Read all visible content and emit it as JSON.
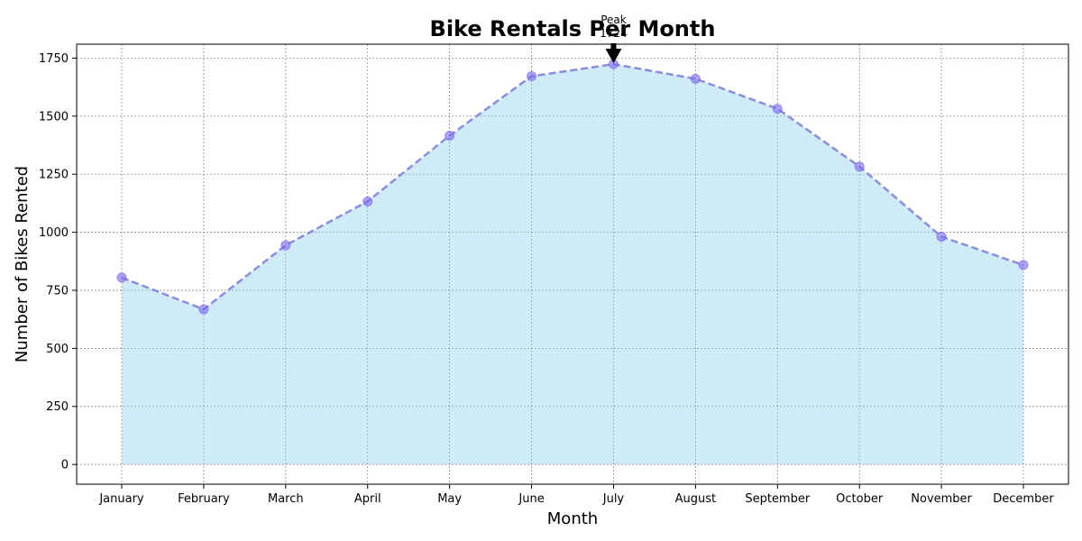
{
  "chart_data": {
    "type": "area",
    "title": "Bike Rentals Per Month",
    "xlabel": "Month",
    "ylabel": "Number of Bikes Rented",
    "categories": [
      "January",
      "February",
      "March",
      "April",
      "May",
      "June",
      "July",
      "August",
      "September",
      "October",
      "November",
      "December"
    ],
    "values": [
      805,
      668,
      944,
      1133,
      1416,
      1672,
      1724,
      1661,
      1532,
      1283,
      981,
      859
    ],
    "ylim": [
      -85,
      1810
    ],
    "yticks": [
      "0",
      "250",
      "500",
      "750",
      "1000",
      "1250",
      "1500",
      "1750"
    ],
    "grid": true,
    "colors": {
      "fill": "#87ceeb",
      "line": "#8a8ddf",
      "marker": "#7b68ee"
    },
    "annotation": {
      "category": "July",
      "line1": "Peak",
      "line2": "1724"
    }
  }
}
